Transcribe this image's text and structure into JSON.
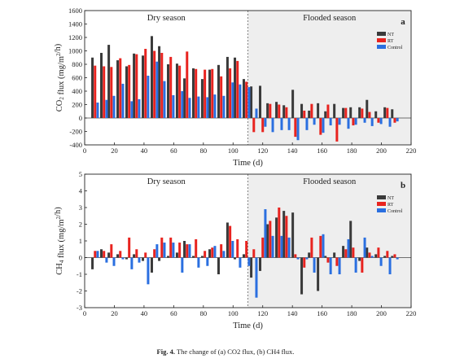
{
  "caption": {
    "label": "Fig. 4.",
    "text": "The change of (a) CO2 flux, (b) CH4 flux."
  },
  "colors": {
    "NT": "#3a3a3a",
    "RT": "#e8231f",
    "Control": "#2a6fe0",
    "flood_shade": "#eeeeee"
  },
  "chart_data": [
    {
      "type": "bar",
      "panel_label": "a",
      "regions": [
        {
          "label": "Dry season"
        },
        {
          "label": "Flooded season",
          "from": 110
        }
      ],
      "xlabel": "Time (d)",
      "ylabel": "CO2 flux (mg/m2/h)",
      "xlim": [
        0,
        220
      ],
      "ylim": [
        -400,
        1600
      ],
      "xticks": [
        0,
        20,
        40,
        60,
        80,
        100,
        120,
        140,
        160,
        180,
        200,
        220
      ],
      "yticks": [
        -400,
        -200,
        0,
        200,
        400,
        600,
        800,
        1000,
        1200,
        1400,
        1600
      ],
      "legend": [
        "NT",
        "RT",
        "Control"
      ],
      "legend_position": "top-right",
      "x": [
        7,
        13,
        18,
        24,
        30,
        35,
        41,
        47,
        52,
        58,
        64,
        69,
        75,
        81,
        86,
        92,
        98,
        103,
        109,
        114,
        120,
        125,
        131,
        136,
        142,
        148,
        153,
        159,
        164,
        170,
        176,
        181,
        187,
        192,
        198,
        204,
        209
      ],
      "series": [
        {
          "name": "NT",
          "values": [
            900,
            970,
            1090,
            860,
            770,
            960,
            930,
            1220,
            1070,
            800,
            810,
            590,
            740,
            580,
            720,
            790,
            910,
            900,
            580,
            470,
            480,
            220,
            240,
            190,
            420,
            210,
            110,
            220,
            100,
            210,
            150,
            160,
            160,
            270,
            100,
            160,
            130
          ]
        },
        {
          "name": "RT",
          "values": [
            780,
            770,
            760,
            890,
            790,
            950,
            1030,
            1000,
            970,
            910,
            780,
            990,
            730,
            720,
            730,
            620,
            740,
            850,
            540,
            -210,
            -210,
            210,
            200,
            160,
            -280,
            110,
            210,
            -250,
            200,
            -350,
            150,
            -110,
            140,
            90,
            -70,
            150,
            -70
          ]
        },
        {
          "name": "Control",
          "values": [
            230,
            270,
            330,
            510,
            250,
            280,
            630,
            840,
            550,
            340,
            400,
            300,
            320,
            310,
            350,
            330,
            530,
            500,
            460,
            140,
            -130,
            -210,
            -180,
            -180,
            -330,
            -180,
            -100,
            -220,
            -110,
            -100,
            -160,
            -100,
            -70,
            -120,
            -90,
            -130,
            -50
          ]
        }
      ]
    },
    {
      "type": "bar",
      "panel_label": "b",
      "regions": [
        {
          "label": "Dry season"
        },
        {
          "label": "Flooded season",
          "from": 110
        }
      ],
      "xlabel": "Time (d)",
      "ylabel": "CH4 flux (mg/m2/h)",
      "xlim": [
        0,
        220
      ],
      "ylim": [
        -3,
        5
      ],
      "xticks": [
        0,
        20,
        40,
        60,
        80,
        100,
        120,
        140,
        160,
        180,
        200,
        220
      ],
      "yticks": [
        -3,
        -2,
        -1,
        0,
        1,
        2,
        3,
        4,
        5
      ],
      "legend": [
        "NT",
        "RT",
        "Control"
      ],
      "legend_position": "top-right",
      "x": [
        7,
        13,
        18,
        24,
        30,
        35,
        41,
        47,
        52,
        58,
        64,
        69,
        75,
        81,
        86,
        92,
        98,
        103,
        109,
        114,
        120,
        125,
        131,
        136,
        142,
        148,
        153,
        159,
        164,
        170,
        176,
        181,
        187,
        192,
        198,
        204,
        209
      ],
      "series": [
        {
          "name": "NT",
          "values": [
            -0.7,
            0.5,
            0.3,
            0.2,
            -0.1,
            0.2,
            -0.2,
            -0.9,
            -0.2,
            0.1,
            0.3,
            1.0,
            0.1,
            0.1,
            0.5,
            -1.0,
            2.1,
            -0.1,
            0.2,
            -1.2,
            -0.8,
            2.0,
            2.4,
            2.8,
            2.7,
            -2.2,
            0.3,
            -2.0,
            0.1,
            0.3,
            0.7,
            2.2,
            -0.2,
            0.6,
            0.2,
            0.1,
            0.1
          ]
        },
        {
          "name": "RT",
          "values": [
            0.4,
            0.4,
            0.8,
            0.4,
            1.2,
            0.5,
            0.3,
            0.5,
            1.2,
            1.2,
            0.9,
            0.8,
            1.1,
            0.4,
            0.6,
            0.8,
            1.9,
            1.1,
            1.0,
            0.5,
            1.2,
            2.2,
            3.0,
            2.5,
            0.2,
            -0.6,
            1.2,
            1.3,
            -0.3,
            -0.5,
            0.5,
            0.6,
            -0.9,
            0.3,
            0.6,
            0.4,
            0.2
          ]
        },
        {
          "name": "Control",
          "values": [
            0.4,
            -0.3,
            -0.5,
            -0.1,
            -0.7,
            -0.3,
            -1.6,
            0.8,
            0.9,
            0.9,
            -0.9,
            0.8,
            -0.6,
            -0.5,
            0.7,
            0.4,
            1.0,
            -0.6,
            -0.5,
            -2.4,
            2.9,
            1.3,
            1.3,
            1.2,
            -0.1,
            -0.1,
            -0.9,
            1.4,
            -1.0,
            -1.0,
            1.1,
            -0.9,
            1.2,
            0.1,
            -0.5,
            -1.0,
            -0.1
          ]
        }
      ]
    }
  ]
}
